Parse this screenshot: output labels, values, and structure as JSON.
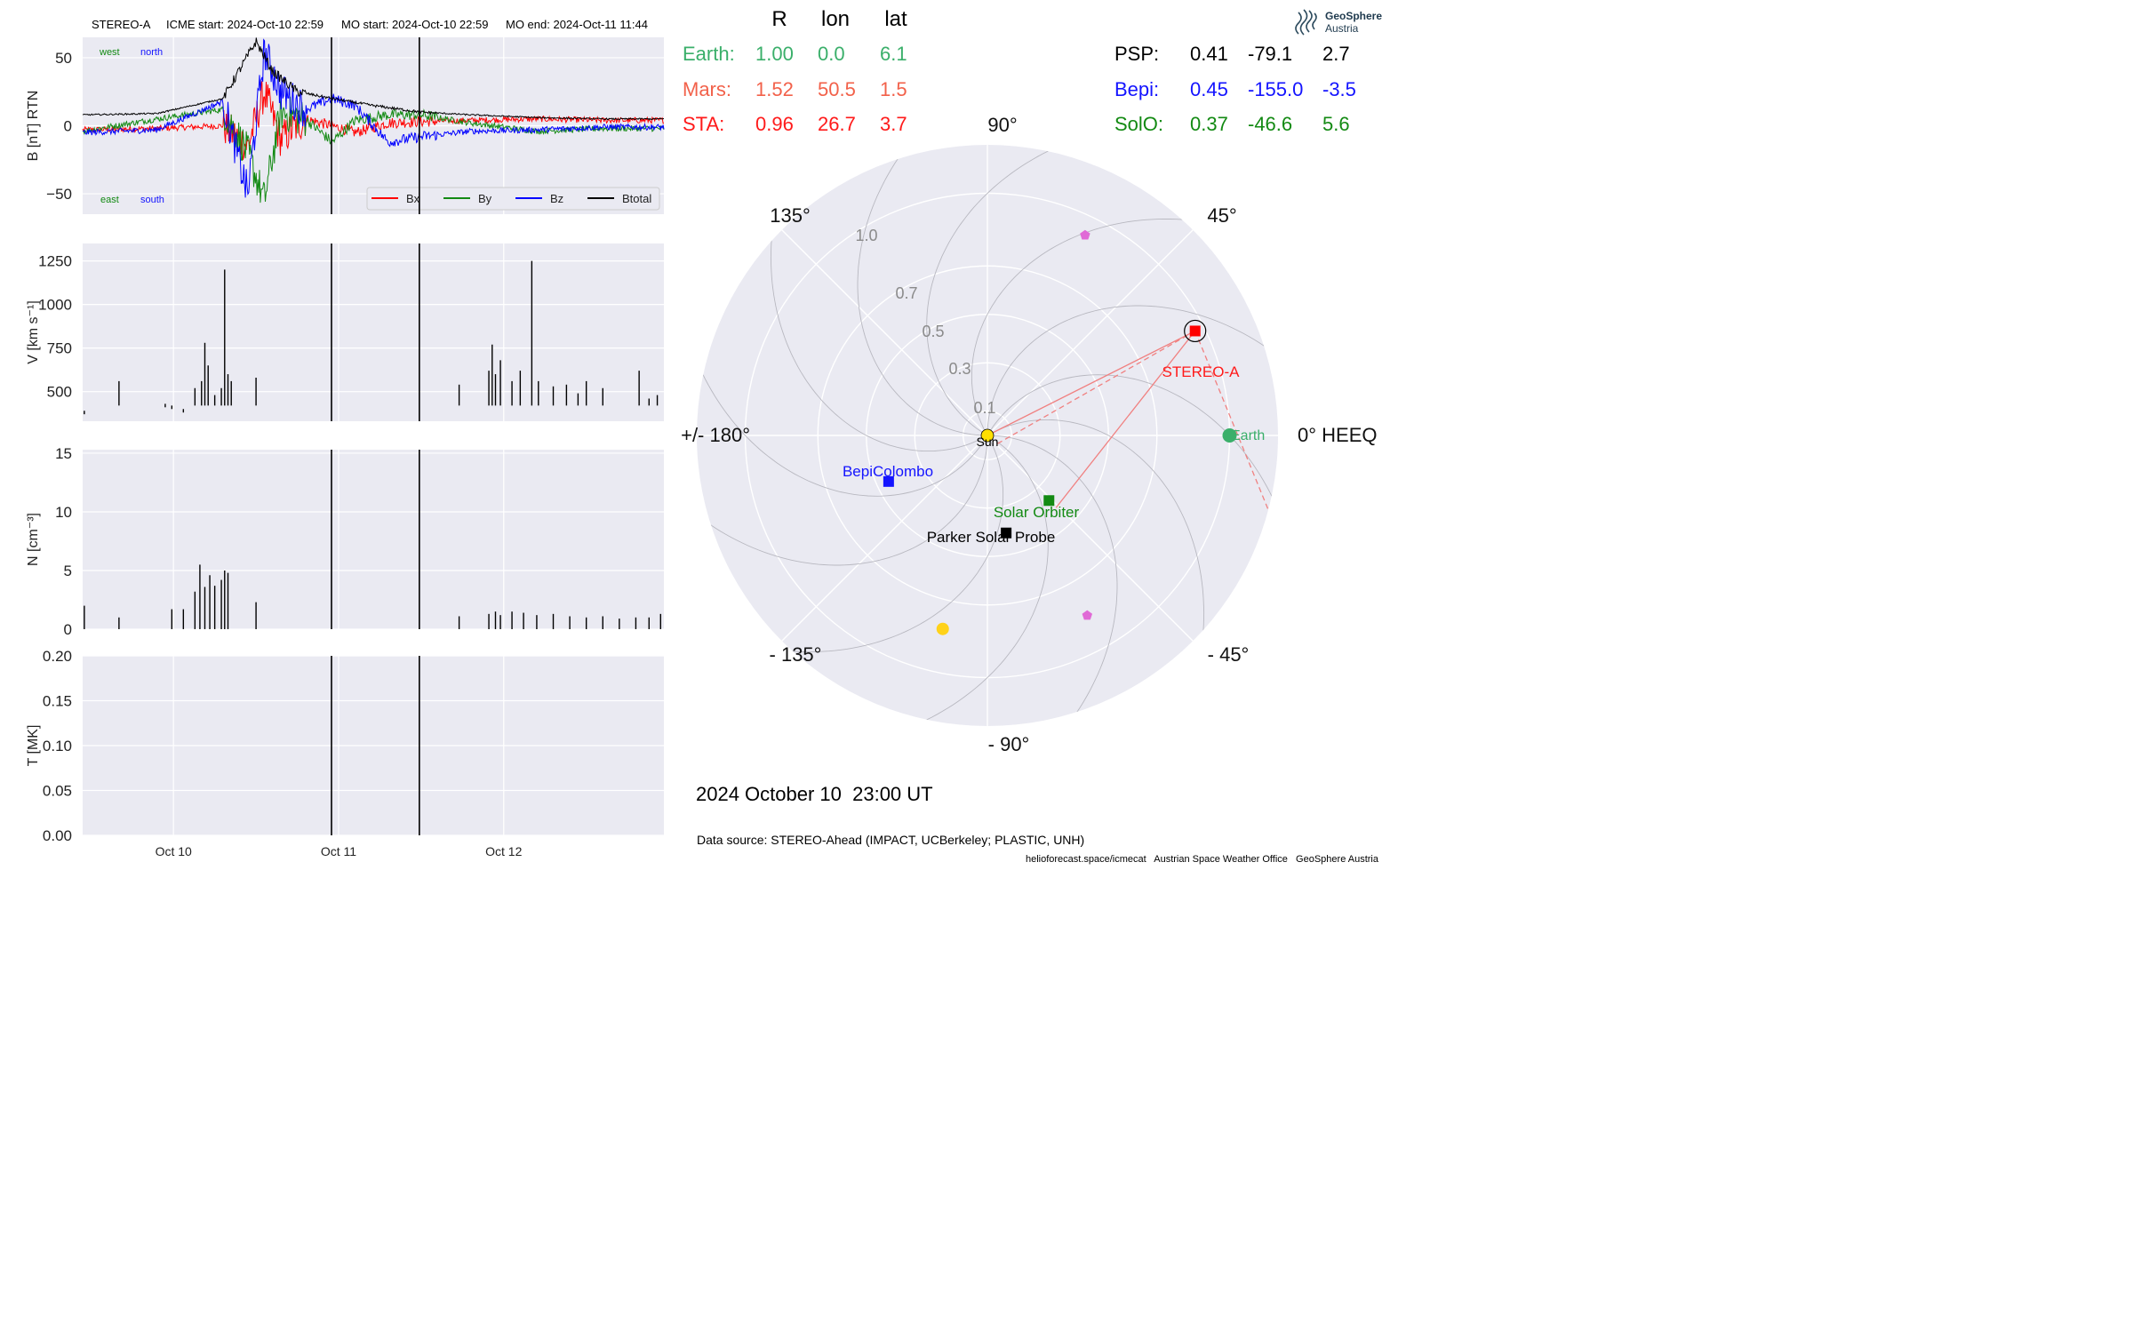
{
  "header": {
    "spacecraft": "STEREO-A",
    "icme_start": "ICME start: 2024-Oct-10 22:59",
    "mo_start": "MO start: 2024-Oct-10 22:59",
    "mo_end": "MO end: 2024-Oct-11 11:44"
  },
  "positions_table": {
    "columns": [
      "R",
      "lon",
      "lat"
    ],
    "left_rows": [
      {
        "name": "Earth:",
        "r": "1.00",
        "lon": "0.0",
        "lat": "6.1",
        "color": "#3aaf6a"
      },
      {
        "name": "Mars:",
        "r": "1.52",
        "lon": "50.5",
        "lat": "1.5",
        "color": "#f2614a"
      },
      {
        "name": "STA:",
        "r": "0.96",
        "lon": "26.7",
        "lat": "3.7",
        "color": "#ff1a1a"
      }
    ],
    "right_rows": [
      {
        "name": "PSP:",
        "r": "0.41",
        "lon": "-79.1",
        "lat": "2.7",
        "color": "#000000"
      },
      {
        "name": "Bepi:",
        "r": "0.45",
        "lon": "-155.0",
        "lat": "-3.5",
        "color": "#1414ff"
      },
      {
        "name": "SolO:",
        "r": "0.37",
        "lon": "-46.6",
        "lat": "5.6",
        "color": "#138a13"
      }
    ]
  },
  "logo": {
    "line1": "GeoSphere",
    "line2": "Austria"
  },
  "polar_plot": {
    "angle_labels": {
      "a0": "0° HEEQ",
      "a45": "45°",
      "a90": "90°",
      "a135": "135°",
      "a180": "+/- 180°",
      "am135": "- 135°",
      "am90": "- 90°",
      "am45": "- 45°"
    },
    "radial_labels": [
      "0.1",
      "0.3",
      "0.5",
      "0.7",
      "1.0"
    ],
    "bodies": [
      {
        "label": "Sun",
        "r": 0.0,
        "lon_deg": 0,
        "color": "#ffe000",
        "marker": "circle"
      },
      {
        "label": "Earth",
        "r": 1.0,
        "lon_deg": 0.0,
        "color": "#3aaf6a",
        "marker": "circle"
      },
      {
        "label": "STEREO-A",
        "r": 0.96,
        "lon_deg": 26.7,
        "color": "#ff0000",
        "marker": "square"
      },
      {
        "label": "BepiColombo",
        "r": 0.45,
        "lon_deg": -155.0,
        "color": "#1414ff",
        "marker": "square"
      },
      {
        "label": "Solar Orbiter",
        "r": 0.37,
        "lon_deg": -46.6,
        "color": "#138a13",
        "marker": "square"
      },
      {
        "label": "Parker Solar Probe",
        "r": 0.41,
        "lon_deg": -79.1,
        "color": "#000000",
        "marker": "square"
      }
    ],
    "extra_markers": [
      {
        "r": 0.82,
        "lon_deg": -103.0,
        "color": "#ffd21a",
        "marker": "circle"
      },
      {
        "r": 0.92,
        "lon_deg": 64.0,
        "color": "#e06ad6",
        "marker": "pentagon"
      },
      {
        "r": 0.85,
        "lon_deg": -61.0,
        "color": "#e06ad6",
        "marker": "pentagon"
      }
    ],
    "date_label": "2024 October 10  23:00 UT",
    "data_source": "Data source: STEREO-Ahead (IMPACT, UCBerkeley; PLASTIC, UNH)"
  },
  "footer": "helioforecast.space/icmecat   Austrian Space Weather Office   GeoSphere Austria",
  "chart_data": [
    {
      "type": "line",
      "ylabel": "B [nT] RTN",
      "ylim": [
        -65,
        65
      ],
      "yticks": [
        "50",
        "0",
        "−50"
      ],
      "corner_labels": {
        "west": "west",
        "north": "north",
        "east": "east",
        "south": "south"
      },
      "x_days": [
        9.45,
        12.97
      ],
      "xticks": [
        "Oct 10",
        "Oct 11",
        "Oct 12"
      ],
      "event_lines_days": [
        10.957,
        11.489
      ],
      "legend_position": "bottom-right",
      "series": [
        {
          "name": "Bx",
          "color": "#ff0000",
          "points": [
            [
              9.45,
              -3
            ],
            [
              9.9,
              -2
            ],
            [
              10.3,
              0
            ],
            [
              10.45,
              -15
            ],
            [
              10.55,
              25
            ],
            [
              10.65,
              -10
            ],
            [
              10.8,
              5
            ],
            [
              10.96,
              0
            ],
            [
              11.1,
              -5
            ],
            [
              11.3,
              2
            ],
            [
              11.5,
              3
            ],
            [
              11.8,
              4
            ],
            [
              12.2,
              5
            ],
            [
              12.6,
              4
            ],
            [
              12.97,
              4
            ]
          ]
        },
        {
          "name": "By",
          "color": "#138a13",
          "points": [
            [
              9.45,
              -4
            ],
            [
              9.9,
              5
            ],
            [
              10.3,
              12
            ],
            [
              10.45,
              -20
            ],
            [
              10.55,
              -55
            ],
            [
              10.65,
              10
            ],
            [
              10.8,
              5
            ],
            [
              10.96,
              -12
            ],
            [
              11.1,
              4
            ],
            [
              11.3,
              8
            ],
            [
              11.5,
              8
            ],
            [
              11.8,
              2
            ],
            [
              12.2,
              -4
            ],
            [
              12.6,
              -2
            ],
            [
              12.97,
              -2
            ]
          ]
        },
        {
          "name": "Bz",
          "color": "#0000ff",
          "points": [
            [
              9.45,
              -5
            ],
            [
              9.9,
              -3
            ],
            [
              10.3,
              18
            ],
            [
              10.45,
              -50
            ],
            [
              10.55,
              55
            ],
            [
              10.65,
              25
            ],
            [
              10.8,
              12
            ],
            [
              10.96,
              20
            ],
            [
              11.1,
              15
            ],
            [
              11.3,
              -12
            ],
            [
              11.5,
              -8
            ],
            [
              11.8,
              -4
            ],
            [
              12.2,
              -3
            ],
            [
              12.6,
              -1
            ],
            [
              12.97,
              -1
            ]
          ]
        },
        {
          "name": "Btotal",
          "color": "#000000",
          "points": [
            [
              9.45,
              8
            ],
            [
              9.9,
              9
            ],
            [
              10.3,
              20
            ],
            [
              10.5,
              62
            ],
            [
              10.6,
              40
            ],
            [
              10.75,
              25
            ],
            [
              10.96,
              20
            ],
            [
              11.2,
              15
            ],
            [
              11.5,
              10
            ],
            [
              11.8,
              8
            ],
            [
              12.2,
              6
            ],
            [
              12.6,
              5
            ],
            [
              12.97,
              5
            ]
          ]
        }
      ]
    },
    {
      "type": "bar",
      "ylabel": "V [km s⁻¹]",
      "ylim": [
        330,
        1350
      ],
      "yticks": [
        "1250",
        "1000",
        "750",
        "500"
      ],
      "x_days": [
        9.45,
        12.97
      ],
      "event_lines_days": [
        10.957,
        11.489
      ],
      "baseline": 440,
      "spikes_days_values": [
        [
          9.46,
          390
        ],
        [
          9.67,
          560
        ],
        [
          9.95,
          430
        ],
        [
          9.99,
          420
        ],
        [
          10.06,
          400
        ],
        [
          10.13,
          520
        ],
        [
          10.17,
          560
        ],
        [
          10.19,
          780
        ],
        [
          10.21,
          650
        ],
        [
          10.25,
          480
        ],
        [
          10.29,
          520
        ],
        [
          10.31,
          1200
        ],
        [
          10.33,
          600
        ],
        [
          10.35,
          560
        ],
        [
          10.5,
          580
        ],
        [
          11.73,
          540
        ],
        [
          11.91,
          620
        ],
        [
          11.93,
          770
        ],
        [
          11.95,
          600
        ],
        [
          11.98,
          680
        ],
        [
          12.05,
          560
        ],
        [
          12.1,
          620
        ],
        [
          12.17,
          1250
        ],
        [
          12.21,
          560
        ],
        [
          12.3,
          530
        ],
        [
          12.38,
          540
        ],
        [
          12.45,
          490
        ],
        [
          12.5,
          560
        ],
        [
          12.6,
          520
        ],
        [
          12.82,
          620
        ],
        [
          12.88,
          460
        ],
        [
          12.93,
          480
        ]
      ]
    },
    {
      "type": "bar",
      "ylabel": "N [cm⁻³]",
      "ylim": [
        0,
        15.3
      ],
      "yticks": [
        "15",
        "10",
        "5",
        "0"
      ],
      "x_days": [
        9.45,
        12.97
      ],
      "event_lines_days": [
        10.957,
        11.489
      ],
      "spikes_days_values": [
        [
          9.46,
          2.0
        ],
        [
          9.67,
          1.0
        ],
        [
          9.99,
          1.7
        ],
        [
          10.06,
          1.7
        ],
        [
          10.13,
          3.2
        ],
        [
          10.16,
          5.5
        ],
        [
          10.19,
          3.6
        ],
        [
          10.22,
          4.6
        ],
        [
          10.25,
          3.7
        ],
        [
          10.29,
          4.2
        ],
        [
          10.31,
          5.0
        ],
        [
          10.33,
          4.8
        ],
        [
          10.5,
          2.3
        ],
        [
          11.73,
          1.1
        ],
        [
          11.91,
          1.3
        ],
        [
          11.95,
          1.5
        ],
        [
          11.98,
          1.2
        ],
        [
          12.05,
          1.5
        ],
        [
          12.12,
          1.4
        ],
        [
          12.2,
          1.2
        ],
        [
          12.3,
          1.3
        ],
        [
          12.4,
          1.1
        ],
        [
          12.5,
          1.0
        ],
        [
          12.6,
          1.1
        ],
        [
          12.7,
          0.9
        ],
        [
          12.8,
          1.0
        ],
        [
          12.88,
          1.0
        ],
        [
          12.95,
          1.3
        ]
      ]
    },
    {
      "type": "line",
      "ylabel": "T [MK]",
      "ylim": [
        0,
        0.2
      ],
      "yticks": [
        "0.20",
        "0.15",
        "0.10",
        "0.05",
        "0.00"
      ],
      "x_days": [
        9.45,
        12.97
      ],
      "xticks": [
        "Oct 10",
        "Oct 11",
        "Oct 12"
      ],
      "event_lines_days": [
        10.957,
        11.489
      ],
      "series": []
    }
  ]
}
